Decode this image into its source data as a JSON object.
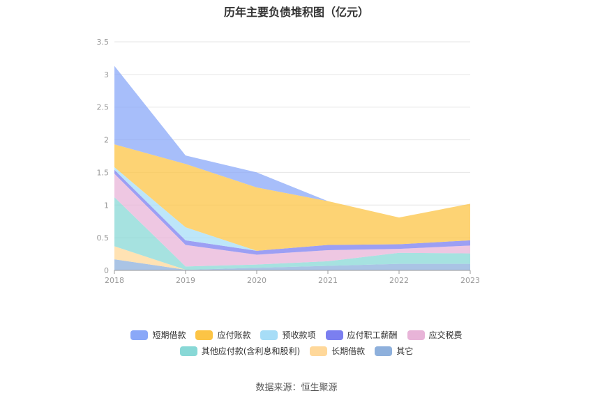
{
  "title": "历年主要负债堆积图（亿元）",
  "source": "数据来源：恒生聚源",
  "chart_data": {
    "type": "area",
    "stacked": true,
    "categories": [
      "2018",
      "2019",
      "2020",
      "2021",
      "2022",
      "2023"
    ],
    "ylim": [
      0,
      3.5
    ],
    "yticks": [
      "0",
      "0.5",
      "1",
      "1.5",
      "2",
      "2.5",
      "3",
      "3.5"
    ],
    "grid": true,
    "legend_position": "bottom",
    "series": [
      {
        "name": "其它",
        "color": "#8eb0dc",
        "values": [
          0.17,
          0.01,
          0.04,
          0.07,
          0.1,
          0.1
        ]
      },
      {
        "name": "长期借款",
        "color": "#ffd89a",
        "values": [
          0.2,
          0.0,
          0.0,
          0.0,
          0.0,
          0.0
        ]
      },
      {
        "name": "其他应付款(含利息和股利)",
        "color": "#88d8d6",
        "values": [
          0.75,
          0.05,
          0.05,
          0.07,
          0.17,
          0.16
        ]
      },
      {
        "name": "应交税费",
        "color": "#e8b4d8",
        "values": [
          0.36,
          0.33,
          0.15,
          0.17,
          0.06,
          0.12
        ]
      },
      {
        "name": "应付职工薪酬",
        "color": "#7b7ff0",
        "values": [
          0.06,
          0.07,
          0.06,
          0.08,
          0.07,
          0.08
        ]
      },
      {
        "name": "预收款项",
        "color": "#a7ddf7",
        "values": [
          0.04,
          0.2,
          0.0,
          0.0,
          0.0,
          0.0
        ]
      },
      {
        "name": "应付账款",
        "color": "#fcc445",
        "values": [
          0.35,
          0.97,
          0.97,
          0.67,
          0.41,
          0.56
        ]
      },
      {
        "name": "短期借款",
        "color": "#8aa8f8",
        "values": [
          1.2,
          0.13,
          0.23,
          0.0,
          0.0,
          0.0
        ]
      }
    ]
  },
  "legend": {
    "row1": [
      {
        "label": "短期借款",
        "color": "#8aa8f8"
      },
      {
        "label": "应付账款",
        "color": "#fcc445"
      },
      {
        "label": "预收款项",
        "color": "#a7ddf7"
      },
      {
        "label": "应付职工薪酬",
        "color": "#7b7ff0"
      },
      {
        "label": "应交税费",
        "color": "#e8b4d8"
      }
    ],
    "row2": [
      {
        "label": "其他应付款(含利息和股利)",
        "color": "#88d8d6"
      },
      {
        "label": "长期借款",
        "color": "#ffd89a"
      },
      {
        "label": "其它",
        "color": "#8eb0dc"
      }
    ]
  }
}
